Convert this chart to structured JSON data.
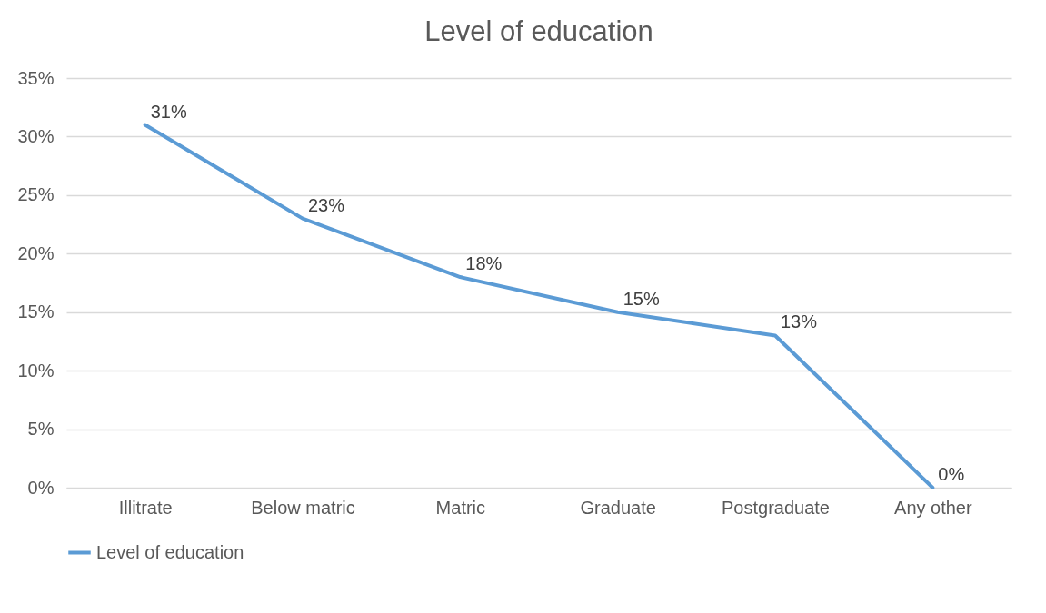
{
  "chart_data": {
    "type": "line",
    "title": "Level of education",
    "categories": [
      "Illitrate",
      "Below matric",
      "Matric",
      "Graduate",
      "Postgraduate",
      "Any other"
    ],
    "series": [
      {
        "name": "Level of education",
        "color": "#5b9bd5",
        "values": [
          31,
          23,
          18,
          15,
          13,
          0
        ],
        "value_labels": [
          "31%",
          "23%",
          "18%",
          "15%",
          "13%",
          "0%"
        ]
      }
    ],
    "ylim": [
      0,
      35
    ],
    "yticks": [
      {
        "value": 0,
        "label": "0%"
      },
      {
        "value": 5,
        "label": "5%"
      },
      {
        "value": 10,
        "label": "10%"
      },
      {
        "value": 15,
        "label": "15%"
      },
      {
        "value": 20,
        "label": "20%"
      },
      {
        "value": 25,
        "label": "25%"
      },
      {
        "value": 30,
        "label": "30%"
      },
      {
        "value": 35,
        "label": "35%"
      }
    ],
    "grid": "y",
    "legend": "bottom",
    "marker": "none",
    "line_style": "solid"
  }
}
